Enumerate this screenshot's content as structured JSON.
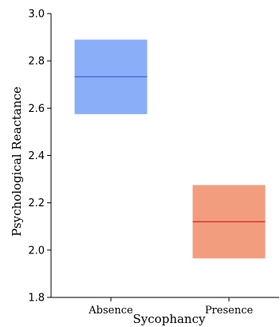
{
  "chart_data": {
    "type": "bar",
    "subtype": "floating-box",
    "xlabel": "Sycophancy",
    "ylabel": "Psychological Reactance",
    "ylim": [
      1.8,
      3.0
    ],
    "yticks": [
      "1.8",
      "2.0",
      "2.2",
      "2.4",
      "2.6",
      "2.8",
      "3.0"
    ],
    "categories": [
      "Absence",
      "Presence"
    ],
    "boxes": [
      {
        "category": "Absence",
        "low": 2.575,
        "high": 2.89,
        "mean": 2.733,
        "fill": "#8aaef8",
        "line": "#4e6fd8"
      },
      {
        "category": "Presence",
        "low": 1.965,
        "high": 2.275,
        "mean": 2.12,
        "fill": "#f29d7e",
        "line": "#d83a3a"
      }
    ],
    "grid": false,
    "legend": "none"
  }
}
